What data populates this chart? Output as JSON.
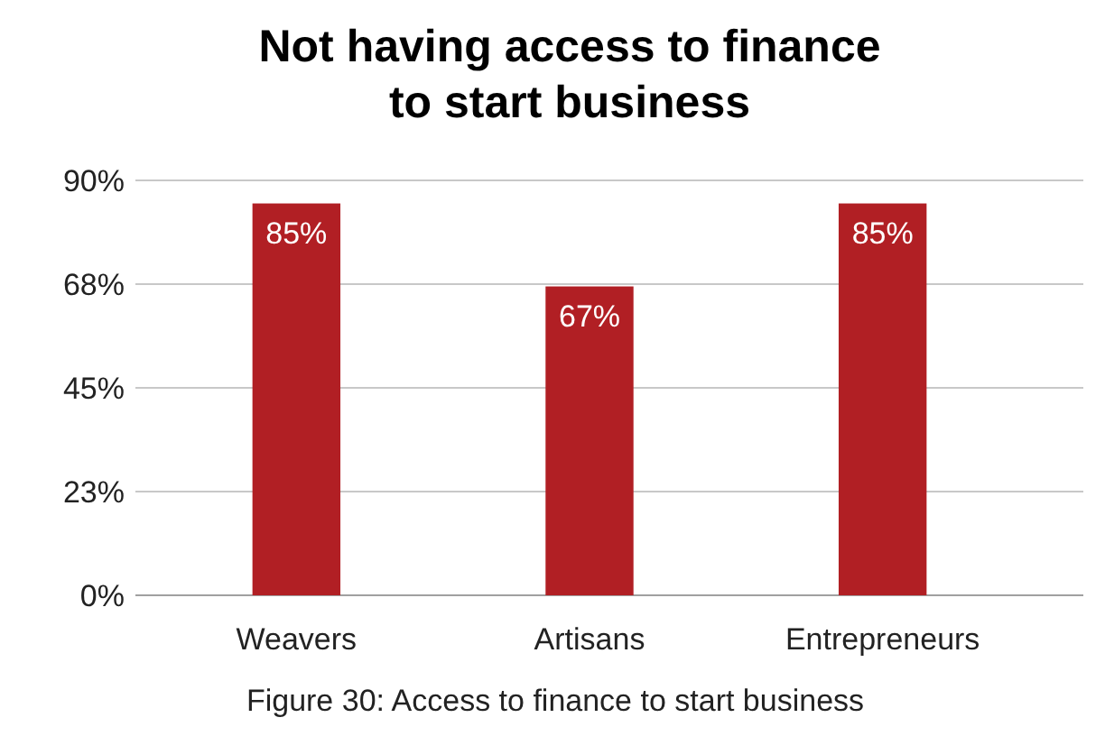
{
  "chart_data": {
    "type": "bar",
    "title": "Not having access to finance to start business",
    "categories": [
      "Weavers",
      "Artisans",
      "Entrepreneurs"
    ],
    "values": [
      85,
      67,
      85
    ],
    "color": "#b11f24",
    "value_labels": [
      "85%",
      "67%",
      "85%"
    ],
    "ylim": [
      0,
      90
    ],
    "yticks": [
      {
        "value": 0,
        "label": "0%"
      },
      {
        "value": 22.5,
        "label": "23%"
      },
      {
        "value": 45,
        "label": "45%"
      },
      {
        "value": 67.5,
        "label": "68%"
      },
      {
        "value": 90,
        "label": "90%"
      }
    ],
    "grid": "y",
    "annotations": [
      "Figure 30: Access to finance to start business"
    ]
  }
}
